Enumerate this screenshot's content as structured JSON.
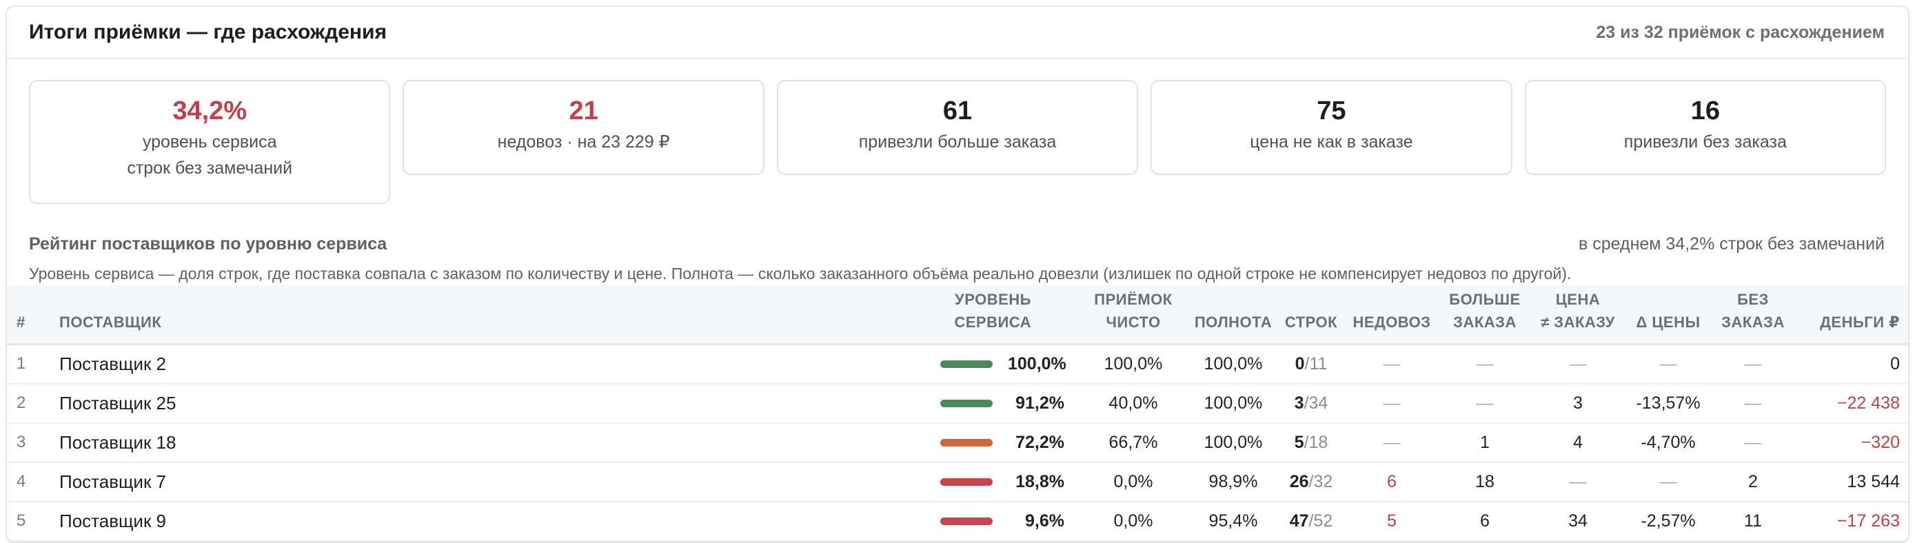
{
  "header": {
    "title": "Итоги приёмки — где расхождения",
    "meta": "23 из 32 приёмок с расхождением"
  },
  "kpis": [
    {
      "value": "34,2%",
      "label1": "уровень сервиса",
      "label2": "строк без замечаний",
      "accent": "red"
    },
    {
      "value": "21",
      "label1": "недовоз · на 23 229 ₽",
      "accent": "red"
    },
    {
      "value": "61",
      "label1": "привезли больше заказа",
      "accent": "none"
    },
    {
      "value": "75",
      "label1": "цена не как в заказе",
      "accent": "none"
    },
    {
      "value": "16",
      "label1": "привезли без заказа",
      "accent": "none"
    }
  ],
  "section": {
    "title": "Рейтинг поставщиков по уровню сервиса",
    "average": "в среднем 34,2% строк без замечаний",
    "description": "Уровень сервиса — доля строк, где поставка совпала с заказом по количеству и цене. Полнота — сколько заказанного объёма реально довезли (излишек по одной строке не компенсирует недовоз по другой)."
  },
  "table": {
    "headers": {
      "num": "#",
      "supplier": "ПОСТАВЩИК",
      "service_1": "УРОВЕНЬ",
      "service_2": "СЕРВИСА",
      "clean_1": "ПРИЁМОК",
      "clean_2": "ЧИСТО",
      "fill": "ПОЛНОТА",
      "rows": "СТРОК",
      "short": "НЕДОВОЗ",
      "over_1": "БОЛЬШЕ",
      "over_2": "ЗАКАЗА",
      "price_1": "ЦЕНА",
      "price_2": "≠ ЗАКАЗУ",
      "dprice": "Δ ЦЕНЫ",
      "noorder_1": "БЕЗ",
      "noorder_2": "ЗАКАЗА",
      "money": "ДЕНЬГИ ₽"
    },
    "colors": {
      "green": "#4a8a5c",
      "orange": "#d0663c",
      "red": "#c9434d"
    },
    "rows": [
      {
        "num": "1",
        "supplier": "Поставщик 2",
        "service": "100,0%",
        "service_level": 1.0,
        "bar": "green",
        "clean": "100,0%",
        "fill": "100,0%",
        "rows_ok": "0",
        "rows_total": "/11",
        "short": "—",
        "over": "—",
        "price": "—",
        "dprice": "—",
        "noorder": "—",
        "money": "0"
      },
      {
        "num": "2",
        "supplier": "Поставщик 25",
        "service": "91,2%",
        "service_level": 0.912,
        "bar": "green",
        "clean": "40,0%",
        "fill": "100,0%",
        "rows_ok": "3",
        "rows_total": "/34",
        "short": "—",
        "over": "—",
        "price": "3",
        "dprice": "-13,57%",
        "noorder": "—",
        "money": "−22 438"
      },
      {
        "num": "3",
        "supplier": "Поставщик 18",
        "service": "72,2%",
        "service_level": 0.722,
        "bar": "orange",
        "clean": "66,7%",
        "fill": "100,0%",
        "rows_ok": "5",
        "rows_total": "/18",
        "short": "—",
        "over": "1",
        "price": "4",
        "dprice": "-4,70%",
        "noorder": "—",
        "money": "−320"
      },
      {
        "num": "4",
        "supplier": "Поставщик 7",
        "service": "18,8%",
        "service_level": 0.188,
        "bar": "red",
        "clean": "0,0%",
        "fill": "98,9%",
        "rows_ok": "26",
        "rows_total": "/32",
        "short": "6",
        "over": "18",
        "price": "—",
        "dprice": "—",
        "noorder": "2",
        "money": "13 544"
      },
      {
        "num": "5",
        "supplier": "Поставщик 9",
        "service": "9,6%",
        "service_level": 0.096,
        "bar": "red",
        "clean": "0,0%",
        "fill": "95,4%",
        "rows_ok": "47",
        "rows_total": "/52",
        "short": "5",
        "over": "6",
        "price": "34",
        "dprice": "-2,57%",
        "noorder": "11",
        "money": "−17 263"
      }
    ]
  }
}
